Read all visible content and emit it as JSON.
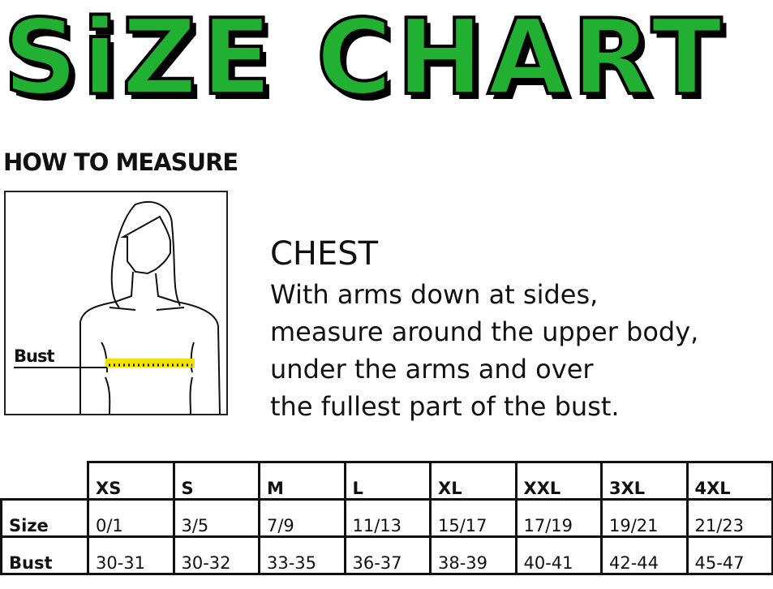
{
  "title": "SiZE CHART",
  "how_to_measure": "HOW TO MEASURE",
  "figure": {
    "label": "Bust",
    "tape_color": "#f2e200"
  },
  "chest": {
    "heading": "CHEST",
    "lines": [
      "With arms down at sides,",
      "measure around the upper body,",
      "under the arms and over",
      "the fullest part of the bust."
    ]
  },
  "table": {
    "columns": [
      "XS",
      "S",
      "M",
      "L",
      "XL",
      "XXL",
      "3XL",
      "4XL"
    ],
    "rows": [
      {
        "label": "Size",
        "values": [
          "0/1",
          "3/5",
          "7/9",
          "11/13",
          "15/17",
          "17/19",
          "19/21",
          "21/23"
        ]
      },
      {
        "label": "Bust",
        "values": [
          "30-31",
          "30-32",
          "33-35",
          "36-37",
          "38-39",
          "40-41",
          "42-44",
          "45-47"
        ]
      }
    ]
  },
  "colors": {
    "title_green": "#22b033"
  }
}
